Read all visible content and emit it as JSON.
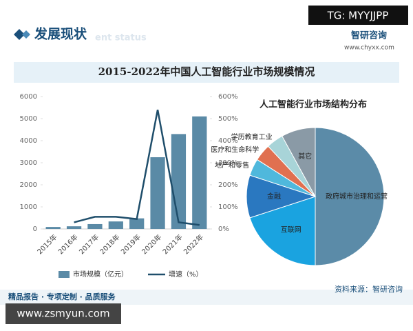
{
  "header": {
    "watermark": "TG: MYYJJPP",
    "section": "发展现状",
    "section_en": "ent status",
    "logo": "智研咨询",
    "site": "www.chyxx.com",
    "title": "2015-2022年中国人工智能行业市场规模情况"
  },
  "chart_data": [
    {
      "type": "bar-line",
      "categories": [
        "2015年",
        "2016年",
        "2017年",
        "2018年",
        "2019年",
        "2020年",
        "2021年",
        "2022年"
      ],
      "series": [
        {
          "name": "市场规模（亿元）",
          "color": "#5a8aa6",
          "values": [
            90,
            120,
            220,
            340,
            480,
            3250,
            4300,
            5100
          ]
        },
        {
          "name": "增速（%）",
          "color": "#1f4e6b",
          "axis": "y2",
          "values": [
            null,
            30,
            55,
            55,
            45,
            540,
            30,
            18
          ]
        }
      ],
      "ylim": [
        0,
        6000
      ],
      "yticks": [
        0,
        1000,
        2000,
        3000,
        4000,
        5000,
        6000
      ],
      "y2lim": [
        0,
        600
      ],
      "y2ticks": [
        {
          "value": 0,
          "label": "0%"
        },
        {
          "value": 100,
          "label": "100%"
        },
        {
          "value": 200,
          "label": "200%"
        },
        {
          "value": 300,
          "label": "300%"
        },
        {
          "value": 400,
          "label": "400%"
        },
        {
          "value": 500,
          "label": "500%"
        },
        {
          "value": 600,
          "label": "600%"
        }
      ]
    },
    {
      "type": "pie",
      "title": "人工智能行业市场结构分布",
      "categories": [
        "政府城市治理和运营",
        "互联网",
        "金融",
        "地产和零售",
        "医疗和生命科学",
        "学历教育工业",
        "其它"
      ],
      "values": [
        50,
        20,
        10,
        4,
        4,
        4,
        8
      ],
      "colors": [
        "#5b8ba8",
        "#1aa3e0",
        "#2a78c0",
        "#4fb8dc",
        "#e07050",
        "#a8d4d8",
        "#8a9aa6"
      ]
    }
  ],
  "footer": {
    "slogan": "精品报告 · 专项定制 · 品质服务",
    "source": "资料来源：智研咨询",
    "watermark": "www.zsmyun.com"
  }
}
